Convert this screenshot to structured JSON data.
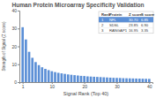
{
  "chart_data": {
    "type": "bar",
    "title": "Human Protein Microarray Specificity Validation",
    "x_label": "Signal Rank (Top 40)",
    "y_label": "Strength of Signal (Z score)",
    "x": [
      1,
      2,
      3,
      4,
      5,
      6,
      7,
      8,
      9,
      10,
      11,
      12,
      13,
      14,
      15,
      16,
      17,
      18,
      19,
      20,
      21,
      22,
      23,
      24,
      25,
      26,
      27,
      28,
      29,
      30,
      31,
      32,
      33,
      34,
      35,
      36,
      37,
      38,
      39,
      40
    ],
    "values": [
      30.7,
      23.85,
      16.95,
      13.6,
      11.2,
      9.5,
      8.3,
      7.4,
      6.7,
      6.1,
      5.6,
      5.2,
      4.9,
      4.6,
      4.3,
      4.1,
      3.9,
      3.7,
      3.5,
      3.4,
      3.2,
      3.1,
      3.0,
      2.9,
      2.8,
      2.7,
      2.6,
      2.5,
      2.4,
      2.35,
      2.3,
      2.2,
      2.15,
      2.1,
      2.05,
      2.0,
      1.95,
      1.9,
      1.85,
      1.8
    ],
    "color": "#5b8fd6",
    "xlim": [
      0,
      41
    ],
    "xticks": [
      1,
      10,
      20,
      30,
      40
    ],
    "ylim": [
      0,
      40
    ],
    "yticks": [
      0,
      10,
      20,
      30,
      40
    ],
    "grid": false,
    "table": {
      "columns": [
        "Rank",
        "Protein",
        "Z score",
        "S score"
      ],
      "rows": [
        [
          "1",
          "NFL",
          "30.70",
          "6.85"
        ],
        [
          "2",
          "SDSL",
          "23.85",
          "6.90"
        ],
        [
          "3",
          "RANGAP1",
          "16.95",
          "3.35"
        ]
      ]
    }
  }
}
